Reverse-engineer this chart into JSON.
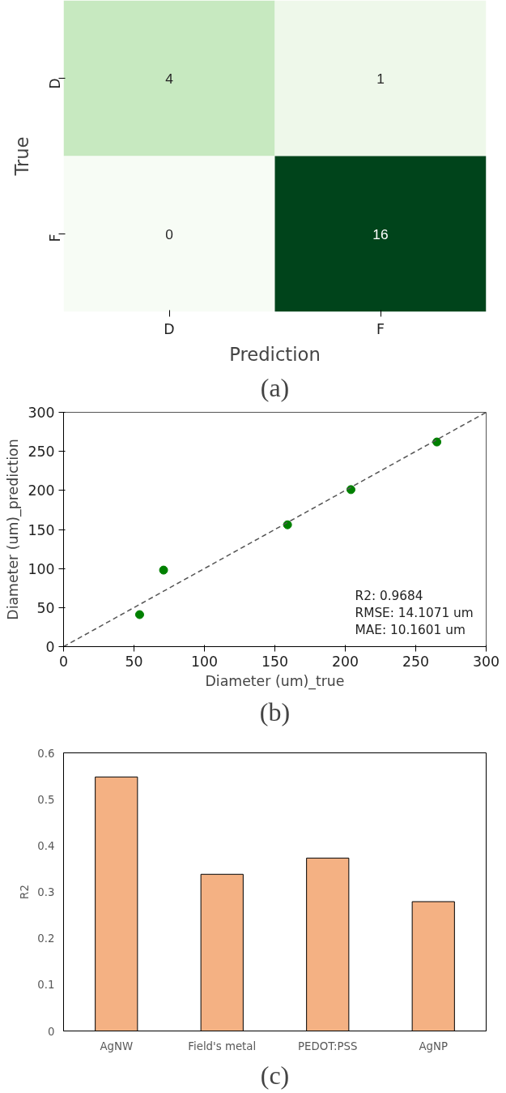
{
  "chart_data": [
    {
      "type": "heatmap",
      "xlabel": "Prediction",
      "ylabel": "True",
      "categories": [
        "D",
        "F"
      ],
      "y_categories": [
        "D",
        "F"
      ],
      "cells": [
        [
          4,
          1
        ],
        [
          0,
          16
        ]
      ],
      "color": "#00441b",
      "data_labels": true,
      "annotations": [
        "(a)"
      ],
      "grid": false
    },
    {
      "type": "scatter",
      "xlabel": "Diameter (um)_true",
      "ylabel": "Diameter (um)_prediction",
      "xlim": [
        0,
        300
      ],
      "ylim": [
        0,
        300
      ],
      "xticks": [
        0,
        50,
        100,
        150,
        200,
        250,
        300
      ],
      "yticks": [
        0,
        50,
        100,
        150,
        200,
        250,
        300
      ],
      "grid": false,
      "series": [
        {
          "type": "scatter",
          "color": "#008000",
          "marker": "circle",
          "x": [
            54,
            71,
            159,
            204,
            265
          ],
          "values": [
            41,
            98,
            156,
            201,
            262
          ]
        },
        {
          "type": "line",
          "color": "#555555",
          "line_style": "dashed",
          "x": [
            0,
            300
          ],
          "values": [
            0,
            300
          ]
        }
      ],
      "annotations": [
        "R2: 0.9684",
        "RMSE: 14.1071 um",
        "MAE: 10.1601 um",
        "(b)"
      ]
    },
    {
      "type": "bar",
      "ylabel": "R2",
      "categories": [
        "AgNW",
        "Field's metal",
        "PEDOT:PSS",
        "AgNP"
      ],
      "values": [
        0.548,
        0.338,
        0.373,
        0.279
      ],
      "color": "#f4b183",
      "ylim": [
        0,
        0.6
      ],
      "yticks": [
        0,
        0.1,
        0.2,
        0.3,
        0.4,
        0.5,
        0.6
      ],
      "grid": false,
      "annotations": [
        "(c)"
      ]
    }
  ]
}
